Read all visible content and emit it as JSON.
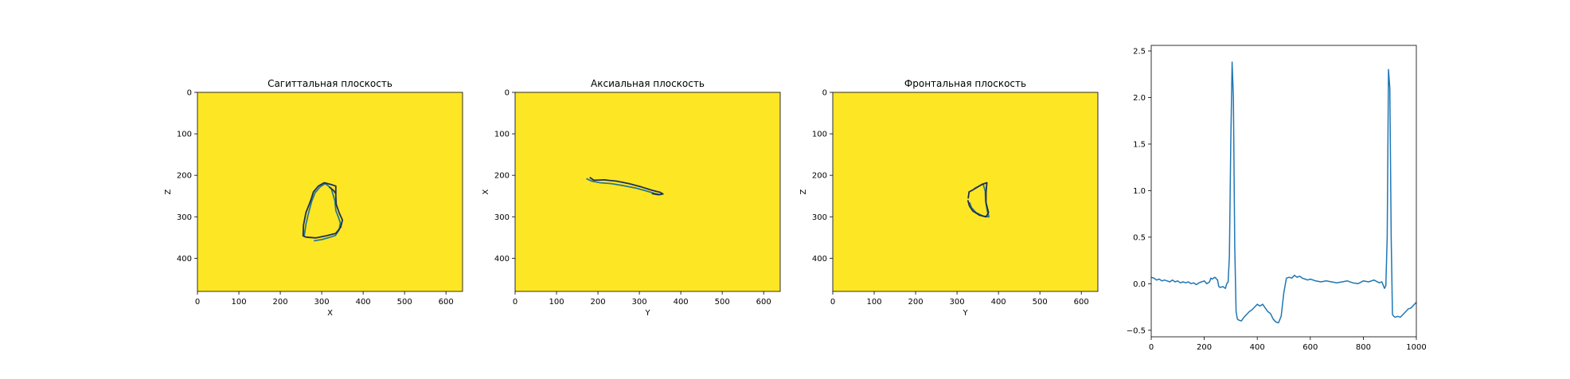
{
  "chart_data": [
    {
      "type": "image",
      "title": "Сагиттальная плоскость",
      "xlabel": "X",
      "ylabel": "Z",
      "xlim": [
        0,
        640
      ],
      "ylim": [
        480,
        0
      ],
      "xticks": [
        "0",
        "100",
        "200",
        "300",
        "400",
        "500",
        "600"
      ],
      "yticks": [
        "0",
        "100",
        "200",
        "300",
        "400"
      ],
      "background_color": "#fde725",
      "series": [
        {
          "color": "#2a788e",
          "points": [
            [
              281,
              358
            ],
            [
              300,
              355
            ],
            [
              318,
              350
            ],
            [
              333,
              345
            ],
            [
              342,
              332
            ],
            [
              345,
              315
            ],
            [
              340,
              300
            ],
            [
              334,
              285
            ],
            [
              332,
              262
            ],
            [
              323,
              232
            ],
            [
              314,
              224
            ],
            [
              308,
              220
            ],
            [
              296,
              228
            ],
            [
              284,
              242
            ],
            [
              276,
              262
            ],
            [
              268,
              292
            ],
            [
              262,
              318
            ],
            [
              258,
              345
            ]
          ]
        },
        {
          "color": "#1f2e52",
          "points": [
            [
              262,
              349
            ],
            [
              286,
              351
            ],
            [
              310,
              346
            ],
            [
              334,
              340
            ],
            [
              346,
              325
            ],
            [
              350,
              308
            ],
            [
              342,
              290
            ],
            [
              335,
              270
            ],
            [
              334,
              250
            ],
            [
              334,
              226
            ],
            [
              322,
              222
            ],
            [
              306,
              218
            ],
            [
              292,
              226
            ],
            [
              280,
              240
            ],
            [
              273,
              262
            ],
            [
              262,
              290
            ],
            [
              256,
              320
            ],
            [
              255,
              346
            ],
            [
              262,
              349
            ]
          ]
        },
        {
          "color": "#1f2e52",
          "points": [
            [
              318,
              228
            ],
            [
              328,
              236
            ],
            [
              334,
              244
            ]
          ]
        }
      ]
    },
    {
      "type": "image",
      "title": "Аксиальная плоскость",
      "xlabel": "Y",
      "ylabel": "X",
      "xlim": [
        0,
        640
      ],
      "ylim": [
        480,
        0
      ],
      "xticks": [
        "0",
        "100",
        "200",
        "300",
        "400",
        "500",
        "600"
      ],
      "yticks": [
        "0",
        "100",
        "200",
        "300",
        "400"
      ],
      "background_color": "#fde725",
      "series": [
        {
          "color": "#2a788e",
          "points": [
            [
              172,
              208
            ],
            [
              185,
              214
            ],
            [
              205,
              218
            ],
            [
              232,
              220
            ],
            [
              262,
              225
            ],
            [
              292,
              231
            ],
            [
              318,
              238
            ],
            [
              338,
              244
            ],
            [
              352,
              247
            ]
          ]
        },
        {
          "color": "#1f2e52",
          "points": [
            [
              180,
              205
            ],
            [
              190,
              212
            ],
            [
              215,
              211
            ],
            [
              245,
              214
            ],
            [
              275,
              220
            ],
            [
              305,
              228
            ],
            [
              330,
              236
            ],
            [
              350,
              241
            ],
            [
              357,
              245
            ],
            [
              346,
              247
            ],
            [
              330,
              244
            ]
          ]
        }
      ]
    },
    {
      "type": "image",
      "title": "Фронтальная плоскость",
      "xlabel": "Y",
      "ylabel": "Z",
      "xlim": [
        0,
        640
      ],
      "ylim": [
        480,
        0
      ],
      "xticks": [
        "0",
        "100",
        "200",
        "300",
        "400",
        "500",
        "600"
      ],
      "yticks": [
        "0",
        "100",
        "200",
        "300",
        "400"
      ],
      "background_color": "#fde725",
      "series": [
        {
          "color": "#2a788e",
          "points": [
            [
              342,
              232
            ],
            [
              363,
              221
            ],
            [
              368,
              238
            ],
            [
              369,
              262
            ],
            [
              373,
              286
            ],
            [
              377,
              300
            ],
            [
              364,
              299
            ],
            [
              346,
              290
            ],
            [
              335,
              278
            ],
            [
              330,
              265
            ]
          ]
        },
        {
          "color": "#1f2e52",
          "points": [
            [
              327,
              256
            ],
            [
              329,
              240
            ],
            [
              337,
              236
            ],
            [
              360,
              222
            ],
            [
              372,
              218
            ],
            [
              370,
              240
            ],
            [
              370,
              266
            ],
            [
              376,
              290
            ],
            [
              370,
              300
            ],
            [
              354,
              296
            ],
            [
              338,
              286
            ],
            [
              330,
              274
            ],
            [
              326,
              260
            ]
          ]
        }
      ]
    },
    {
      "type": "line",
      "title": "",
      "xlabel": "",
      "ylabel": "",
      "xlim": [
        0,
        1000
      ],
      "ylim": [
        -0.57,
        2.56
      ],
      "xticks": [
        "0",
        "200",
        "400",
        "600",
        "800",
        "1000"
      ],
      "yticks": [
        "−0.5",
        "0.0",
        "0.5",
        "1.0",
        "1.5",
        "2.0",
        "2.5"
      ],
      "ytick_values": [
        -0.5,
        0.0,
        0.5,
        1.0,
        1.5,
        2.0,
        2.5
      ],
      "series": [
        {
          "color": "#1f77b4",
          "x": [
            0,
            10,
            20,
            30,
            40,
            50,
            60,
            70,
            80,
            90,
            100,
            110,
            120,
            130,
            140,
            150,
            160,
            170,
            180,
            190,
            200,
            210,
            220,
            225,
            230,
            240,
            250,
            255,
            260,
            270,
            280,
            285,
            290,
            295,
            300,
            305,
            310,
            315,
            320,
            325,
            330,
            340,
            350,
            360,
            370,
            380,
            390,
            400,
            410,
            420,
            430,
            440,
            450,
            460,
            470,
            480,
            490,
            500,
            510,
            520,
            530,
            540,
            550,
            560,
            570,
            580,
            590,
            600,
            620,
            640,
            660,
            680,
            700,
            720,
            740,
            760,
            780,
            800,
            820,
            840,
            860,
            870,
            880,
            885,
            890,
            895,
            900,
            905,
            910,
            915,
            920,
            930,
            940,
            950,
            960,
            970,
            980,
            990,
            1000
          ],
          "y": [
            0.07,
            0.06,
            0.04,
            0.05,
            0.03,
            0.04,
            0.03,
            0.02,
            0.04,
            0.02,
            0.03,
            0.01,
            0.02,
            0.01,
            0.02,
            0.0,
            0.01,
            -0.01,
            0.01,
            0.02,
            0.03,
            0.0,
            0.02,
            0.06,
            0.05,
            0.07,
            0.04,
            -0.03,
            -0.04,
            -0.03,
            -0.05,
            0.0,
            0.02,
            0.3,
            1.5,
            2.38,
            2.0,
            0.4,
            -0.3,
            -0.38,
            -0.39,
            -0.4,
            -0.36,
            -0.33,
            -0.3,
            -0.28,
            -0.25,
            -0.22,
            -0.24,
            -0.22,
            -0.26,
            -0.3,
            -0.32,
            -0.38,
            -0.41,
            -0.42,
            -0.35,
            -0.1,
            0.06,
            0.07,
            0.06,
            0.09,
            0.07,
            0.08,
            0.06,
            0.05,
            0.04,
            0.05,
            0.03,
            0.02,
            0.03,
            0.02,
            0.01,
            0.02,
            0.03,
            0.01,
            0.0,
            0.03,
            0.02,
            0.04,
            0.01,
            0.02,
            -0.05,
            -0.02,
            0.5,
            2.3,
            2.1,
            0.5,
            -0.33,
            -0.35,
            -0.36,
            -0.35,
            -0.36,
            -0.33,
            -0.3,
            -0.27,
            -0.26,
            -0.23,
            -0.2
          ]
        }
      ]
    }
  ]
}
